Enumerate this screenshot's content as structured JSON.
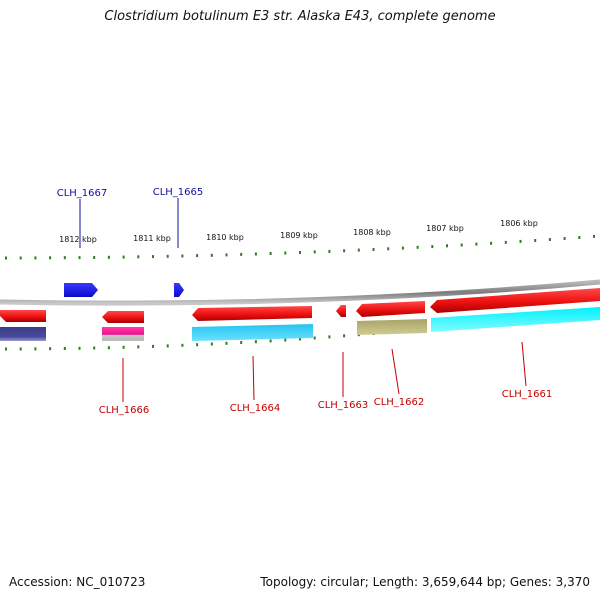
{
  "title": "Clostridium botulinum E3 str. Alaska E43, complete genome",
  "accession_text": "Accession: NC_010723",
  "stats_text": "Topology: circular; Length: 3,659,644 bp; Genes: 3,370",
  "colors": {
    "backbone": "#8a8a8a",
    "tick": "#2e7d1e",
    "forward_label": "#1010a0",
    "reverse_label": "#c00000",
    "gene_red": "#ee1111",
    "gene_blue": "#1515ee"
  },
  "ruler": [
    {
      "label": "1812 kbp"
    },
    {
      "label": "1811 kbp"
    },
    {
      "label": "1810 kbp"
    },
    {
      "label": "1809 kbp"
    },
    {
      "label": "1808 kbp"
    },
    {
      "label": "1807 kbp"
    },
    {
      "label": "1806 kbp"
    }
  ],
  "genes": [
    {
      "name": "CLH_1667",
      "strand": "forward",
      "label_color": "#1010a0"
    },
    {
      "name": "CLH_1665",
      "strand": "forward",
      "label_color": "#1010a0"
    },
    {
      "name": "CLH_1666",
      "strand": "reverse",
      "label_color": "#c00000"
    },
    {
      "name": "CLH_1664",
      "strand": "reverse",
      "label_color": "#c00000"
    },
    {
      "name": "CLH_1663",
      "strand": "reverse",
      "label_color": "#c00000"
    },
    {
      "name": "CLH_1662",
      "strand": "reverse",
      "label_color": "#c00000"
    },
    {
      "name": "CLH_1661",
      "strand": "reverse",
      "label_color": "#c00000"
    }
  ]
}
